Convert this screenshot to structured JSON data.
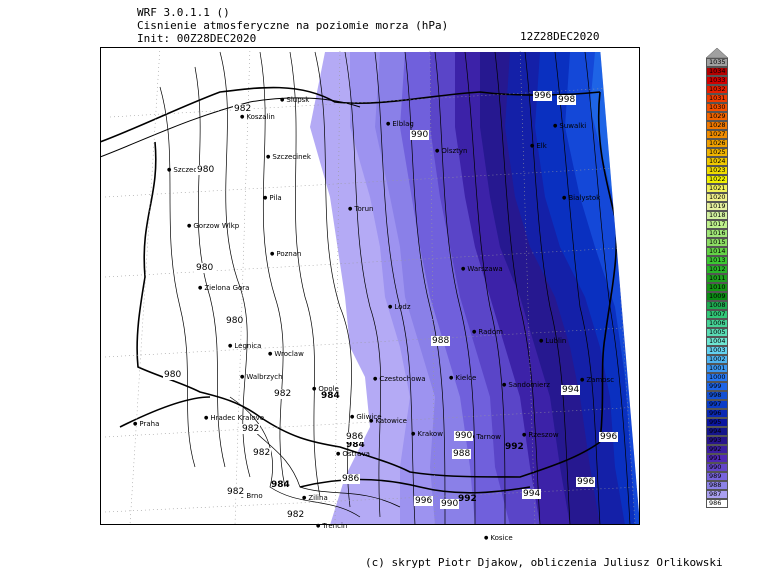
{
  "header": {
    "model": "WRF 3.0.1.1 ()",
    "variable": "Cisnienie atmosferyczne na poziomie morza (hPa)",
    "init": "Init: 00Z28DEC2020",
    "valid": "12Z28DEC2020"
  },
  "credit": "(c) skrypt Piotr Djakow, obliczenia Juliusz Orlikowski",
  "cities": [
    {
      "name": "Slupsk"
    },
    {
      "name": "Koszalin"
    },
    {
      "name": "Elblag"
    },
    {
      "name": "Olsztyn"
    },
    {
      "name": "Szczecin"
    },
    {
      "name": "Szczecinek"
    },
    {
      "name": "Pila"
    },
    {
      "name": "Torun"
    },
    {
      "name": "Gorzow Wlkp"
    },
    {
      "name": "Poznan"
    },
    {
      "name": "Warszawa"
    },
    {
      "name": "Zielona Gora"
    },
    {
      "name": "Lodz"
    },
    {
      "name": "Radom"
    },
    {
      "name": "Lublin"
    },
    {
      "name": "Legnica"
    },
    {
      "name": "Wroclaw"
    },
    {
      "name": "Walbrzych"
    },
    {
      "name": "Opole"
    },
    {
      "name": "Czestochowa"
    },
    {
      "name": "Kielce"
    },
    {
      "name": "Sandomierz"
    },
    {
      "name": "Zamosc"
    },
    {
      "name": "Praha"
    },
    {
      "name": "Hradec Kralove"
    },
    {
      "name": "Gliwice"
    },
    {
      "name": "Katowice"
    },
    {
      "name": "Krakow"
    },
    {
      "name": "Tarnow"
    },
    {
      "name": "Rzeszow"
    },
    {
      "name": "Ostrava"
    },
    {
      "name": "Brno"
    },
    {
      "name": "Zilina"
    },
    {
      "name": "Trencin"
    },
    {
      "name": "Kosice"
    },
    {
      "name": "Elk"
    },
    {
      "name": "Suwalki"
    },
    {
      "name": "Bialystok"
    }
  ],
  "isobar_labels": [
    {
      "text": "982"
    },
    {
      "text": "980"
    },
    {
      "text": "980"
    },
    {
      "text": "980"
    },
    {
      "text": "982"
    },
    {
      "text": "982"
    },
    {
      "text": "984"
    },
    {
      "text": "984"
    },
    {
      "text": "984"
    },
    {
      "text": "986"
    },
    {
      "text": "986"
    },
    {
      "text": "988"
    },
    {
      "text": "988"
    },
    {
      "text": "990"
    },
    {
      "text": "990"
    },
    {
      "text": "990"
    },
    {
      "text": "992"
    },
    {
      "text": "992"
    },
    {
      "text": "994"
    },
    {
      "text": "994"
    },
    {
      "text": "996"
    },
    {
      "text": "996"
    },
    {
      "text": "996"
    },
    {
      "text": "996"
    },
    {
      "text": "998"
    },
    {
      "text": "982"
    },
    {
      "text": "980"
    },
    {
      "text": "982"
    },
    {
      "text": "982"
    }
  ],
  "legend": {
    "values": [
      "1035",
      "1034",
      "1033",
      "1032",
      "1031",
      "1030",
      "1029",
      "1028",
      "1027",
      "1026",
      "1025",
      "1024",
      "1023",
      "1022",
      "1021",
      "1020",
      "1019",
      "1018",
      "1017",
      "1016",
      "1015",
      "1014",
      "1013",
      "1012",
      "1011",
      "1010",
      "1009",
      "1008",
      "1007",
      "1006",
      "1005",
      "1004",
      "1003",
      "1002",
      "1001",
      "1000",
      "999",
      "998",
      "997",
      "996",
      "995",
      "994",
      "993",
      "992",
      "991",
      "990",
      "989",
      "988",
      "987",
      "986"
    ],
    "colors": [
      "#a0a0a0",
      "#b40000",
      "#d20000",
      "#e61e00",
      "#f03c00",
      "#f55000",
      "#f06400",
      "#f07800",
      "#f08c00",
      "#f0a000",
      "#f0b400",
      "#f0c800",
      "#f0dc00",
      "#f0f000",
      "#f0f05a",
      "#f0f08c",
      "#e6f0a0",
      "#d2f0a0",
      "#bef08c",
      "#a0e678",
      "#8cdc64",
      "#64d246",
      "#3cc832",
      "#28b428",
      "#1ea01e",
      "#149614",
      "#0a8c14",
      "#1eaa50",
      "#32c878",
      "#46d296",
      "#5adcb4",
      "#6ee6d2",
      "#64d2f0",
      "#50b4f0",
      "#3c96f0",
      "#2878f0",
      "#1e64e6",
      "#1450d2",
      "#0a3cc8",
      "#0a28b4",
      "#0a14a0",
      "#14148c",
      "#28148c",
      "#3c1ea0",
      "#5028b4",
      "#6446c8",
      "#7864dc",
      "#8c82e6",
      "#aaa0f0",
      "#ffffff"
    ],
    "top_arrow_color": "#a0a0a0"
  },
  "map_colors": {
    "frame": "#000000",
    "grid": "#999999"
  }
}
